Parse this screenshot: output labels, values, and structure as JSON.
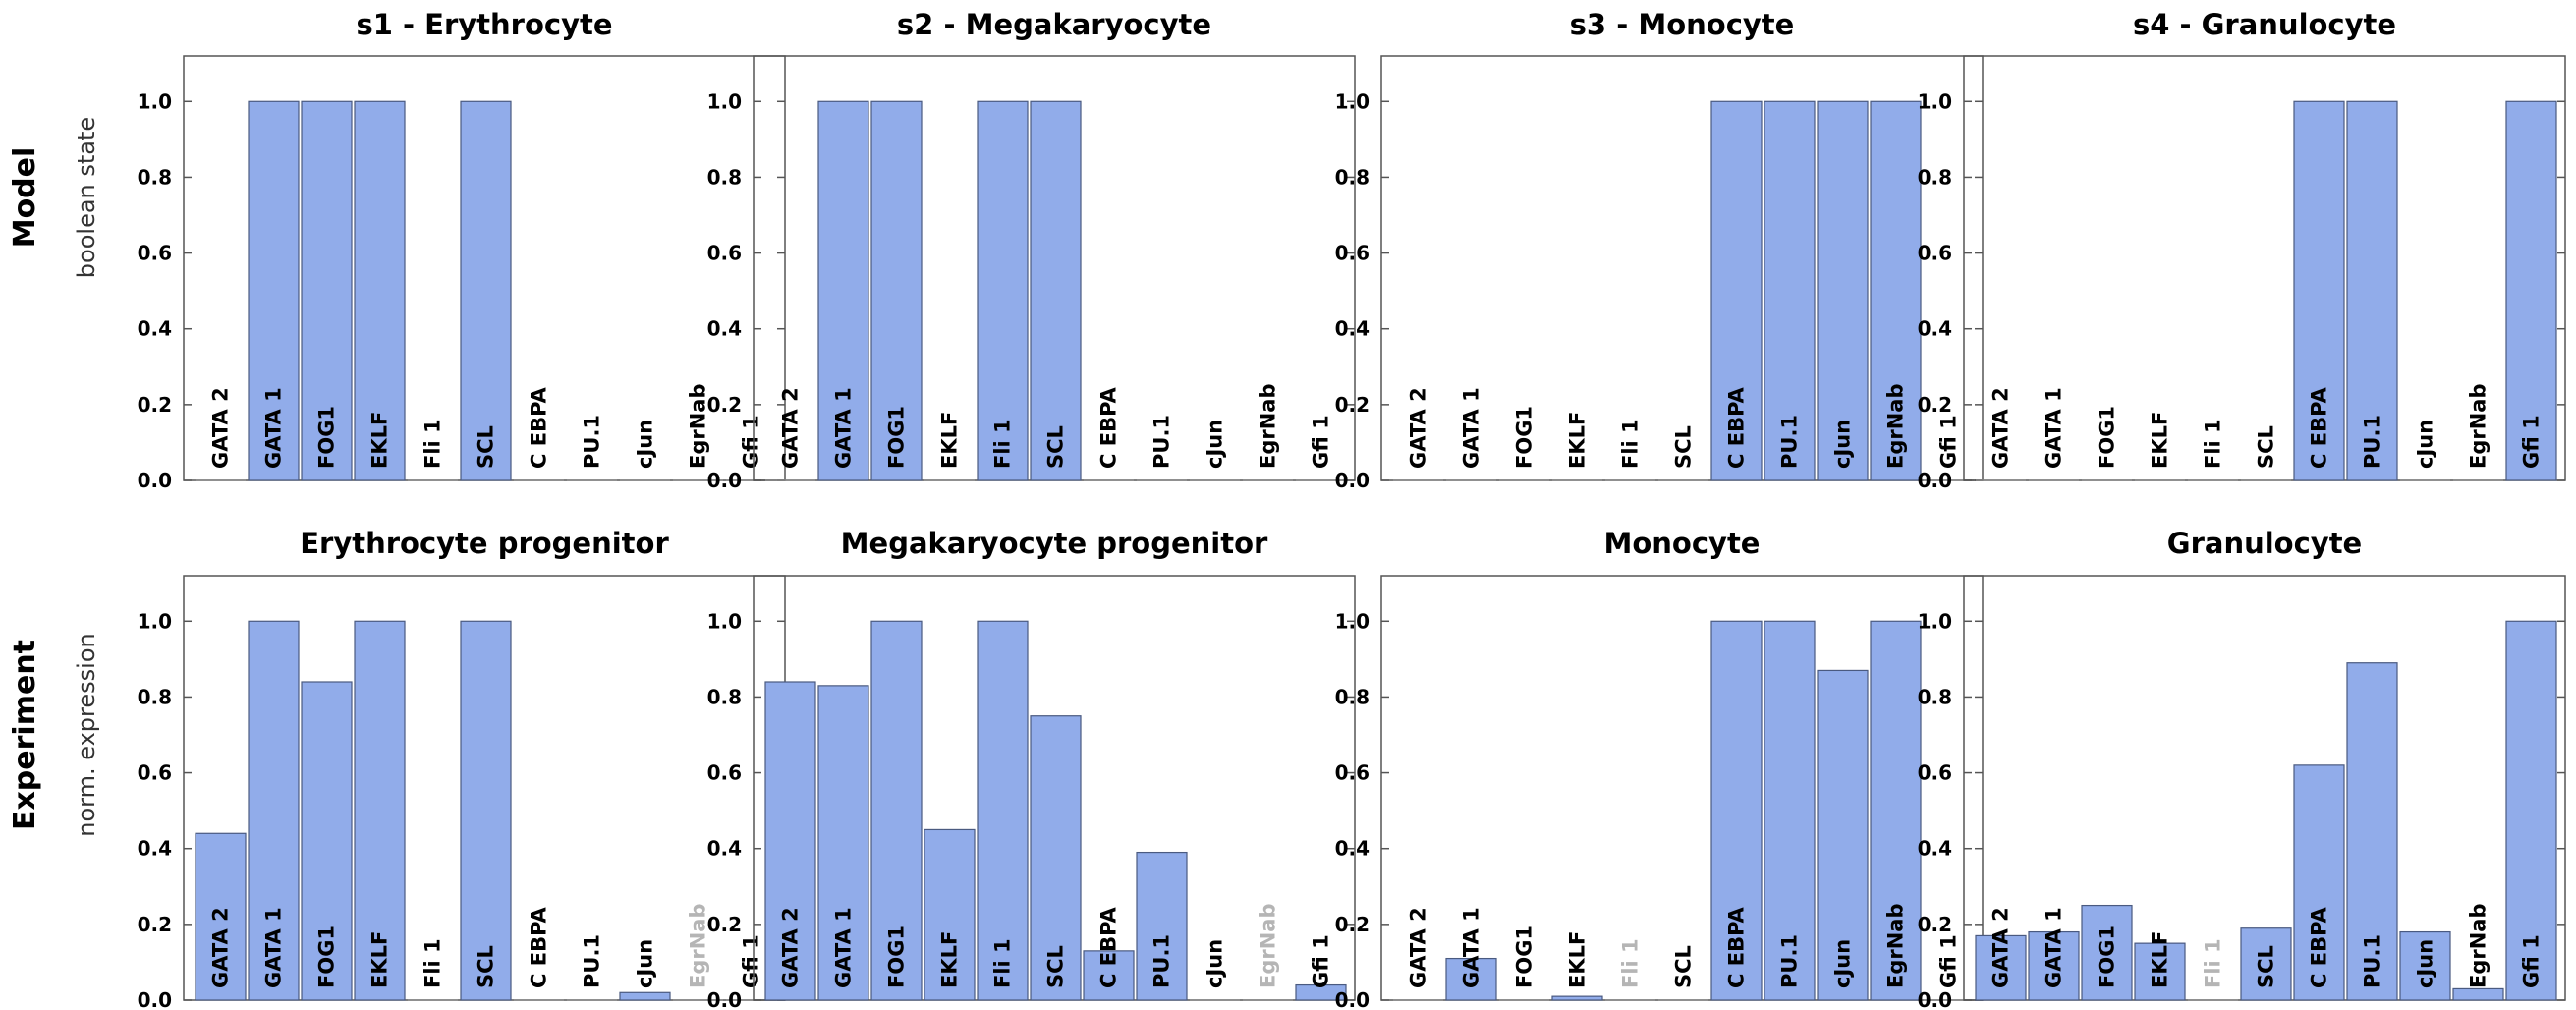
{
  "figure": {
    "row_labels": [
      "Model",
      "Experiment"
    ],
    "y_axis_titles": [
      "boolean state",
      "norm. expression"
    ]
  },
  "colors": {
    "bar_fill": "#91acea",
    "bar_stroke": "#4a5a80",
    "frame": "#555555",
    "label_normal": "#000000",
    "label_faded": "#b5b5b5"
  },
  "chart_data": [
    {
      "type": "bar",
      "row": 0,
      "col": 0,
      "title": "s1 - Erythrocyte",
      "ylabel": "boolean state",
      "ylim": [
        0,
        1.12
      ],
      "yticks": [
        "0.0",
        "0.2",
        "0.4",
        "0.6",
        "0.8",
        "1.0"
      ],
      "categories": [
        "GATA 2",
        "GATA 1",
        "FOG1",
        "EKLF",
        "Fli 1",
        "SCL",
        "C EBPA",
        "PU.1",
        "cJun",
        "EgrNab",
        "Gfi 1"
      ],
      "values": [
        0,
        1,
        1,
        1,
        0,
        1,
        0,
        0,
        0,
        0,
        0
      ],
      "faded": []
    },
    {
      "type": "bar",
      "row": 0,
      "col": 1,
      "title": "s2 - Megakaryocyte",
      "ylabel": "",
      "ylim": [
        0,
        1.12
      ],
      "yticks": [
        "0.0",
        "0.2",
        "0.4",
        "0.6",
        "0.8",
        "1.0"
      ],
      "categories": [
        "GATA 2",
        "GATA 1",
        "FOG1",
        "EKLF",
        "Fli 1",
        "SCL",
        "C EBPA",
        "PU.1",
        "cJun",
        "EgrNab",
        "Gfi 1"
      ],
      "values": [
        0,
        1,
        1,
        0,
        1,
        1,
        0,
        0,
        0,
        0,
        0
      ],
      "faded": []
    },
    {
      "type": "bar",
      "row": 0,
      "col": 2,
      "title": "s3 - Monocyte",
      "ylabel": "",
      "ylim": [
        0,
        1.12
      ],
      "yticks": [
        "0.0",
        "0.2",
        "0.4",
        "0.6",
        "0.8",
        "1.0"
      ],
      "categories": [
        "GATA 2",
        "GATA 1",
        "FOG1",
        "EKLF",
        "Fli 1",
        "SCL",
        "C EBPA",
        "PU.1",
        "cJun",
        "EgrNab",
        "Gfi 1"
      ],
      "values": [
        0,
        0,
        0,
        0,
        0,
        0,
        1,
        1,
        1,
        1,
        0
      ],
      "faded": []
    },
    {
      "type": "bar",
      "row": 0,
      "col": 3,
      "title": "s4 - Granulocyte",
      "ylabel": "",
      "ylim": [
        0,
        1.12
      ],
      "yticks": [
        "0.0",
        "0.2",
        "0.4",
        "0.6",
        "0.8",
        "1.0"
      ],
      "categories": [
        "GATA 2",
        "GATA 1",
        "FOG1",
        "EKLF",
        "Fli 1",
        "SCL",
        "C EBPA",
        "PU.1",
        "cJun",
        "EgrNab",
        "Gfi 1"
      ],
      "values": [
        0,
        0,
        0,
        0,
        0,
        0,
        1,
        1,
        0,
        0,
        1
      ],
      "faded": []
    },
    {
      "type": "bar",
      "row": 1,
      "col": 0,
      "title": "Erythrocyte progenitor",
      "ylabel": "norm. expression",
      "ylim": [
        0,
        1.12
      ],
      "yticks": [
        "0.0",
        "0.2",
        "0.4",
        "0.6",
        "0.8",
        "1.0"
      ],
      "categories": [
        "GATA 2",
        "GATA 1",
        "FOG1",
        "EKLF",
        "Fli 1",
        "SCL",
        "C EBPA",
        "PU.1",
        "cJun",
        "EgrNab",
        "Gfi 1"
      ],
      "values": [
        0.44,
        1.0,
        0.84,
        1.0,
        0,
        1.0,
        0,
        0,
        0.02,
        0,
        0
      ],
      "faded": [
        "EgrNab"
      ]
    },
    {
      "type": "bar",
      "row": 1,
      "col": 1,
      "title": "Megakaryocyte progenitor",
      "ylabel": "",
      "ylim": [
        0,
        1.12
      ],
      "yticks": [
        "0.0",
        "0.2",
        "0.4",
        "0.6",
        "0.8",
        "1.0"
      ],
      "categories": [
        "GATA 2",
        "GATA 1",
        "FOG1",
        "EKLF",
        "Fli 1",
        "SCL",
        "C EBPA",
        "PU.1",
        "cJun",
        "EgrNab",
        "Gfi 1"
      ],
      "values": [
        0.84,
        0.83,
        1.0,
        0.45,
        1.0,
        0.75,
        0.13,
        0.39,
        0,
        0,
        0.04
      ],
      "faded": [
        "EgrNab"
      ]
    },
    {
      "type": "bar",
      "row": 1,
      "col": 2,
      "title": "Monocyte",
      "ylabel": "",
      "ylim": [
        0,
        1.12
      ],
      "yticks": [
        "0.0",
        "0.2",
        "0.4",
        "0.6",
        "0.8",
        "1.0"
      ],
      "categories": [
        "GATA 2",
        "GATA 1",
        "FOG1",
        "EKLF",
        "Fli 1",
        "SCL",
        "C EBPA",
        "PU.1",
        "cJun",
        "EgrNab",
        "Gfi 1"
      ],
      "values": [
        0,
        0.11,
        0,
        0.01,
        0,
        0,
        1.0,
        1.0,
        0.87,
        1.0,
        0
      ],
      "faded": [
        "Fli 1"
      ]
    },
    {
      "type": "bar",
      "row": 1,
      "col": 3,
      "title": "Granulocyte",
      "ylabel": "",
      "ylim": [
        0,
        1.12
      ],
      "yticks": [
        "0.0",
        "0.2",
        "0.4",
        "0.6",
        "0.8",
        "1.0"
      ],
      "categories": [
        "GATA 2",
        "GATA 1",
        "FOG1",
        "EKLF",
        "Fli 1",
        "SCL",
        "C EBPA",
        "PU.1",
        "cJun",
        "EgrNab",
        "Gfi 1"
      ],
      "values": [
        0.17,
        0.18,
        0.25,
        0.15,
        0,
        0.19,
        0.62,
        0.89,
        0.18,
        0.03,
        1.0
      ],
      "faded": [
        "Fli 1"
      ]
    }
  ]
}
